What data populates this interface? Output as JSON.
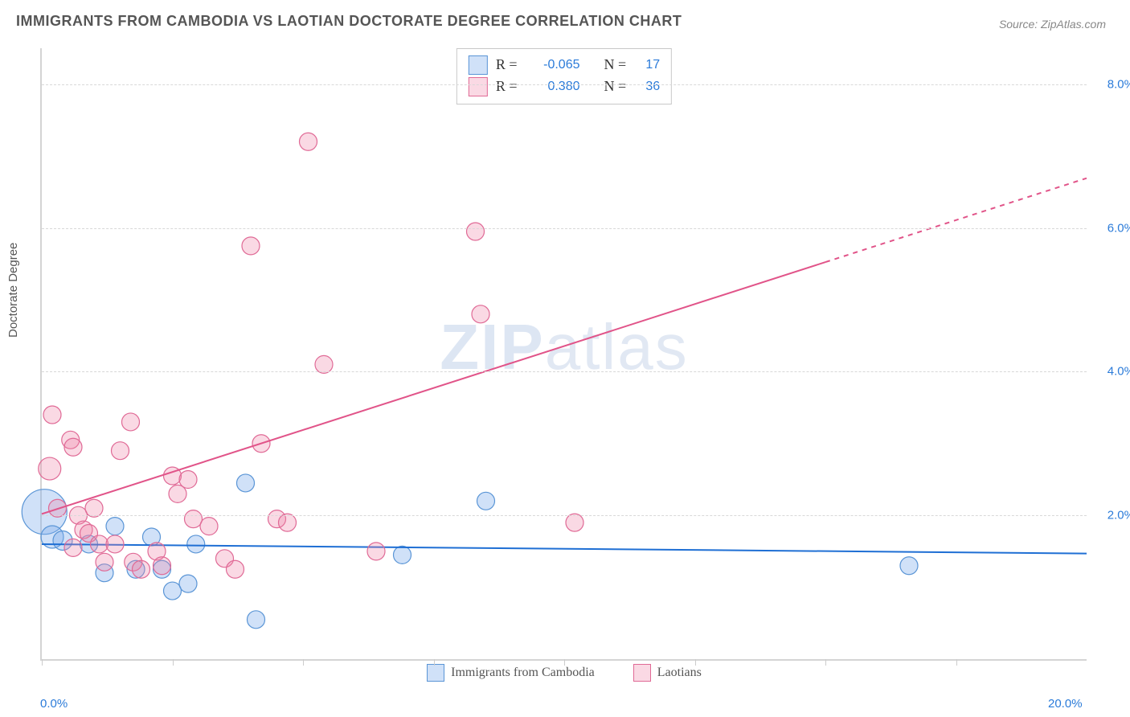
{
  "title": "IMMIGRANTS FROM CAMBODIA VS LAOTIAN DOCTORATE DEGREE CORRELATION CHART",
  "source_label": "Source:",
  "source_value": "ZipAtlas.com",
  "watermark": {
    "strong": "ZIP",
    "rest": "atlas"
  },
  "y_axis_label": "Doctorate Degree",
  "chart": {
    "type": "scatter",
    "background_color": "#ffffff",
    "grid_color": "#d8d8d8",
    "axis_color": "#d4d4d4",
    "xlim": [
      0,
      20
    ],
    "ylim": [
      0,
      8.5
    ],
    "x_tick_positions": [
      0,
      2.5,
      5,
      7.5,
      10,
      12.5,
      15,
      17.5
    ],
    "x_tick_labels": {
      "left": {
        "pos": 0.0,
        "text": "0.0%",
        "color": "#2b7bd9"
      },
      "right": {
        "pos": 20.0,
        "text": "20.0%",
        "color": "#2b7bd9"
      }
    },
    "y_ticks": [
      {
        "pos": 2.0,
        "label": "2.0%",
        "color": "#2b7bd9"
      },
      {
        "pos": 4.0,
        "label": "4.0%",
        "color": "#2b7bd9"
      },
      {
        "pos": 6.0,
        "label": "6.0%",
        "color": "#2b7bd9"
      },
      {
        "pos": 8.0,
        "label": "8.0%",
        "color": "#2b7bd9"
      }
    ],
    "marker_radius": 11,
    "marker_stroke_width": 1.2,
    "series": [
      {
        "name": "Immigrants from Cambodia",
        "fill": "rgba(120,170,235,0.35)",
        "stroke": "#5a95d6",
        "points": [
          {
            "x": 0.05,
            "y": 2.05,
            "r": 28
          },
          {
            "x": 0.2,
            "y": 1.7,
            "r": 14
          },
          {
            "x": 0.4,
            "y": 1.65,
            "r": 12
          },
          {
            "x": 0.9,
            "y": 1.6
          },
          {
            "x": 1.2,
            "y": 1.2
          },
          {
            "x": 1.4,
            "y": 1.85
          },
          {
            "x": 1.8,
            "y": 1.25
          },
          {
            "x": 2.1,
            "y": 1.7
          },
          {
            "x": 2.3,
            "y": 1.25
          },
          {
            "x": 2.5,
            "y": 0.95
          },
          {
            "x": 2.8,
            "y": 1.05
          },
          {
            "x": 2.95,
            "y": 1.6
          },
          {
            "x": 3.9,
            "y": 2.45
          },
          {
            "x": 4.1,
            "y": 0.55
          },
          {
            "x": 6.9,
            "y": 1.45
          },
          {
            "x": 8.5,
            "y": 2.2
          },
          {
            "x": 16.6,
            "y": 1.3
          }
        ],
        "trend": {
          "slope": -0.0065,
          "intercept": 1.6,
          "x1": 0,
          "x2": 20,
          "stroke": "#1f6fd4",
          "stroke_width": 2.0
        }
      },
      {
        "name": "Laotians",
        "fill": "rgba(240,130,165,0.30)",
        "stroke": "#e06a96",
        "points": [
          {
            "x": 0.15,
            "y": 2.65,
            "r": 14
          },
          {
            "x": 0.2,
            "y": 3.4
          },
          {
            "x": 0.3,
            "y": 2.1
          },
          {
            "x": 0.55,
            "y": 3.05
          },
          {
            "x": 0.6,
            "y": 2.95
          },
          {
            "x": 0.6,
            "y": 1.55
          },
          {
            "x": 0.7,
            "y": 2.0
          },
          {
            "x": 0.8,
            "y": 1.8
          },
          {
            "x": 0.9,
            "y": 1.75
          },
          {
            "x": 1.0,
            "y": 2.1
          },
          {
            "x": 1.1,
            "y": 1.6
          },
          {
            "x": 1.2,
            "y": 1.35
          },
          {
            "x": 1.4,
            "y": 1.6
          },
          {
            "x": 1.5,
            "y": 2.9
          },
          {
            "x": 1.7,
            "y": 3.3
          },
          {
            "x": 1.75,
            "y": 1.35
          },
          {
            "x": 1.9,
            "y": 1.25
          },
          {
            "x": 2.2,
            "y": 1.5
          },
          {
            "x": 2.3,
            "y": 1.3
          },
          {
            "x": 2.5,
            "y": 2.55
          },
          {
            "x": 2.6,
            "y": 2.3
          },
          {
            "x": 2.8,
            "y": 2.5
          },
          {
            "x": 2.9,
            "y": 1.95
          },
          {
            "x": 3.2,
            "y": 1.85
          },
          {
            "x": 3.5,
            "y": 1.4
          },
          {
            "x": 3.7,
            "y": 1.25
          },
          {
            "x": 4.0,
            "y": 5.75
          },
          {
            "x": 4.2,
            "y": 3.0
          },
          {
            "x": 4.5,
            "y": 1.95
          },
          {
            "x": 4.7,
            "y": 1.9
          },
          {
            "x": 5.1,
            "y": 7.2
          },
          {
            "x": 5.4,
            "y": 4.1
          },
          {
            "x": 6.4,
            "y": 1.5
          },
          {
            "x": 8.3,
            "y": 5.95
          },
          {
            "x": 8.4,
            "y": 4.8
          },
          {
            "x": 10.2,
            "y": 1.9
          }
        ],
        "trend": {
          "slope": 0.2336,
          "intercept": 2.02,
          "x1": 0,
          "x2": 15,
          "dash_from_x": 15,
          "dash_to_x": 20,
          "stroke": "#e15489",
          "stroke_width": 2.0
        }
      }
    ],
    "stats_box": [
      {
        "series_idx": 0,
        "r_label": "R =",
        "r_value": "-0.065",
        "n_label": "N =",
        "n_value": "17"
      },
      {
        "series_idx": 1,
        "r_label": "R =",
        "r_value": "0.380",
        "n_label": "N =",
        "n_value": "36"
      }
    ],
    "value_color": "#2b7bd9",
    "label_fontsize": 15,
    "title_fontsize": 18
  }
}
